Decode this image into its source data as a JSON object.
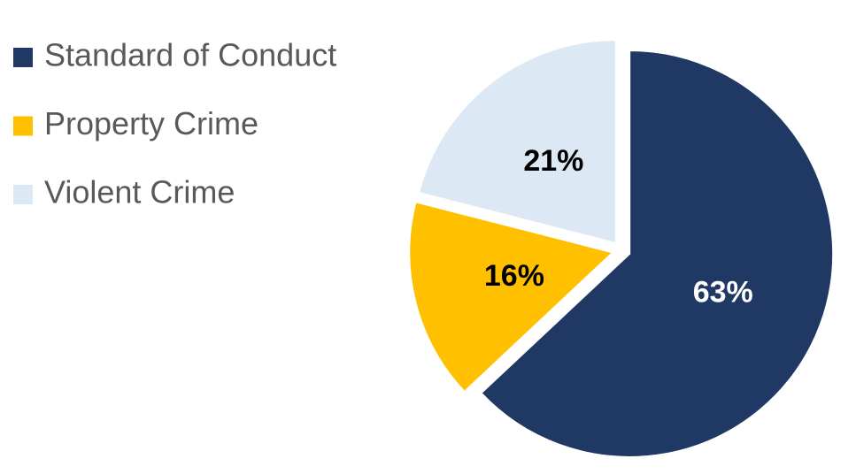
{
  "chart_data": {
    "type": "pie",
    "categories": [
      "Standard of Conduct",
      "Property Crime",
      "Violent Crime"
    ],
    "values": [
      63,
      16,
      21
    ],
    "value_labels": [
      "63%",
      "16%",
      "21%"
    ],
    "colors": [
      "#203864",
      "#ffc000",
      "#dde8f5"
    ],
    "legend": "left"
  }
}
